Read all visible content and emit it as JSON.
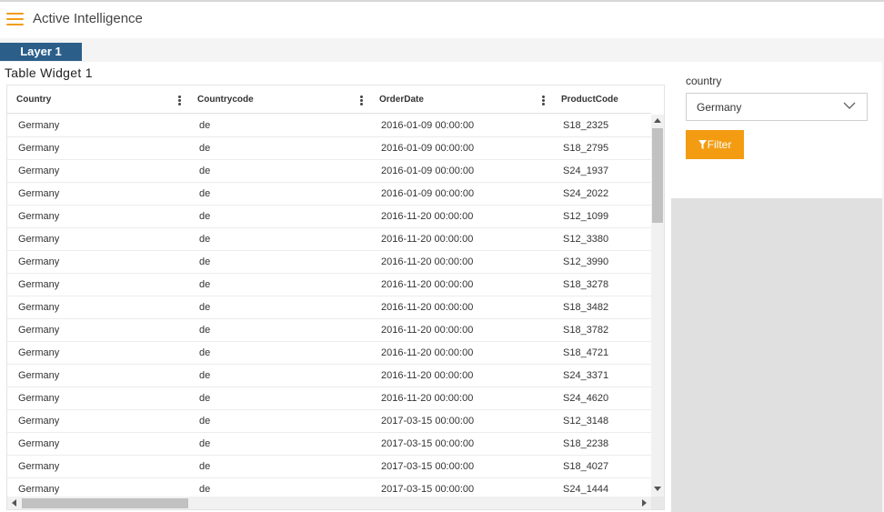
{
  "header": {
    "title": "Active Intelligence",
    "menu_icon": "hamburger-icon"
  },
  "layer": {
    "tab_label": "Layer 1"
  },
  "table_widget": {
    "title": "Table Widget 1",
    "columns": [
      "Country",
      "Countrycode",
      "OrderDate",
      "ProductCode"
    ],
    "rows": [
      [
        "Germany",
        "de",
        "2016-01-09 00:00:00",
        "S18_2325"
      ],
      [
        "Germany",
        "de",
        "2016-01-09 00:00:00",
        "S18_2795"
      ],
      [
        "Germany",
        "de",
        "2016-01-09 00:00:00",
        "S24_1937"
      ],
      [
        "Germany",
        "de",
        "2016-01-09 00:00:00",
        "S24_2022"
      ],
      [
        "Germany",
        "de",
        "2016-11-20 00:00:00",
        "S12_1099"
      ],
      [
        "Germany",
        "de",
        "2016-11-20 00:00:00",
        "S12_3380"
      ],
      [
        "Germany",
        "de",
        "2016-11-20 00:00:00",
        "S12_3990"
      ],
      [
        "Germany",
        "de",
        "2016-11-20 00:00:00",
        "S18_3278"
      ],
      [
        "Germany",
        "de",
        "2016-11-20 00:00:00",
        "S18_3482"
      ],
      [
        "Germany",
        "de",
        "2016-11-20 00:00:00",
        "S18_3782"
      ],
      [
        "Germany",
        "de",
        "2016-11-20 00:00:00",
        "S18_4721"
      ],
      [
        "Germany",
        "de",
        "2016-11-20 00:00:00",
        "S24_3371"
      ],
      [
        "Germany",
        "de",
        "2016-11-20 00:00:00",
        "S24_4620"
      ],
      [
        "Germany",
        "de",
        "2017-03-15 00:00:00",
        "S12_3148"
      ],
      [
        "Germany",
        "de",
        "2017-03-15 00:00:00",
        "S18_2238"
      ],
      [
        "Germany",
        "de",
        "2017-03-15 00:00:00",
        "S18_4027"
      ],
      [
        "Germany",
        "de",
        "2017-03-15 00:00:00",
        "S24_1444"
      ]
    ]
  },
  "filter_widget": {
    "label": "country",
    "selected_value": "Germany",
    "button_label": "Filter",
    "button_icon": "funnel-icon"
  },
  "colors": {
    "accent": "#f39c12",
    "layer_tab": "#2b5f8a"
  }
}
